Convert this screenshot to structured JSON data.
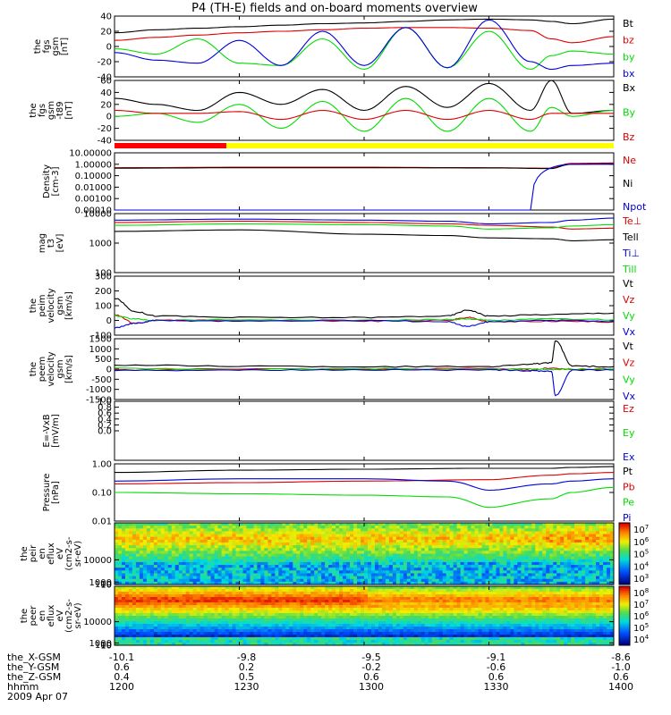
{
  "figure": {
    "title": "P4 (TH-E) fields and on-board moments overview",
    "date_label": "2009 Apr 07"
  },
  "time_axis": {
    "ticks": [
      "1200",
      "1230",
      "1300",
      "1330",
      "1400"
    ],
    "rows": [
      {
        "label": "the_X-GSM",
        "values": [
          "-10.1",
          "-9.8",
          "-9.5",
          "-9.1",
          "-8.6"
        ]
      },
      {
        "label": "the_Y-GSM",
        "values": [
          "0.6",
          "0.2",
          "-0.2",
          "-0.6",
          "-1.0"
        ]
      },
      {
        "label": "the_Z-GSM",
        "values": [
          "0.4",
          "0.5",
          "0.6",
          "0.6",
          "0.6"
        ]
      },
      {
        "label": "hhmm",
        "values": [
          "1200",
          "1230",
          "1300",
          "1330",
          "1400"
        ]
      }
    ]
  },
  "colors": {
    "black": "#000000",
    "red": "#dd0000",
    "green": "#00dd00",
    "blue": "#0000dd",
    "mode_bar_red": "#ff0000",
    "mode_bar_yellow": "#ffff00"
  },
  "chart_data": [
    {
      "type": "line",
      "id": "fgs_gsm",
      "ylabel": [
        "the",
        "fgs",
        "gsm",
        "[nT]"
      ],
      "ylim": [
        -40,
        40
      ],
      "yticks": [
        "40",
        "20",
        "0",
        "-20",
        "-40"
      ],
      "series": [
        {
          "name": "Bt",
          "color": "black",
          "x": [
            1200,
            1210,
            1220,
            1230,
            1240,
            1250,
            1300,
            1310,
            1320,
            1330,
            1340,
            1345,
            1350,
            1400
          ],
          "y": [
            18,
            22,
            24,
            26,
            28,
            30,
            31,
            33,
            35,
            36,
            35,
            33,
            30,
            36
          ]
        },
        {
          "name": "bz",
          "color": "red",
          "x": [
            1200,
            1210,
            1220,
            1230,
            1240,
            1250,
            1300,
            1310,
            1320,
            1330,
            1340,
            1345,
            1350,
            1400
          ],
          "y": [
            8,
            12,
            15,
            18,
            20,
            22,
            24,
            25,
            25,
            24,
            21,
            10,
            5,
            13
          ]
        },
        {
          "name": "by",
          "color": "green",
          "x": [
            1200,
            1210,
            1220,
            1230,
            1240,
            1250,
            1300,
            1310,
            1320,
            1330,
            1340,
            1345,
            1350,
            1400
          ],
          "y": [
            -3,
            -10,
            10,
            -22,
            -25,
            10,
            -30,
            25,
            -28,
            20,
            -30,
            -12,
            -6,
            -10
          ]
        },
        {
          "name": "bx",
          "color": "blue",
          "x": [
            1200,
            1210,
            1220,
            1230,
            1240,
            1250,
            1300,
            1310,
            1320,
            1330,
            1340,
            1345,
            1350,
            1400
          ],
          "y": [
            -8,
            -18,
            -22,
            8,
            -25,
            20,
            -25,
            25,
            -28,
            35,
            -20,
            -30,
            -25,
            -22
          ]
        }
      ]
    },
    {
      "type": "line",
      "id": "fgs_gse",
      "ylabel": [
        "the",
        "fgs",
        "gsm",
        "-t89",
        "[nT]"
      ],
      "ylim": [
        -40,
        60
      ],
      "yticks": [
        "60",
        "40",
        "20",
        "0",
        "-20",
        "-40"
      ],
      "series": [
        {
          "name": "Bx",
          "color": "black",
          "x": [
            1200,
            1210,
            1220,
            1230,
            1240,
            1250,
            1300,
            1310,
            1320,
            1330,
            1340,
            1345,
            1350,
            1400
          ],
          "y": [
            30,
            20,
            10,
            40,
            20,
            45,
            10,
            50,
            15,
            55,
            10,
            60,
            5,
            10
          ]
        },
        {
          "name": "By",
          "color": "green",
          "x": [
            1200,
            1210,
            1220,
            1230,
            1240,
            1250,
            1300,
            1310,
            1320,
            1330,
            1340,
            1345,
            1350,
            1400
          ],
          "y": [
            0,
            5,
            -10,
            20,
            -20,
            25,
            -25,
            30,
            -25,
            30,
            -25,
            15,
            0,
            10
          ]
        },
        {
          "name": "Bz",
          "color": "red",
          "x": [
            1200,
            1210,
            1220,
            1230,
            1240,
            1250,
            1300,
            1310,
            1320,
            1330,
            1340,
            1345,
            1350,
            1400
          ],
          "y": [
            10,
            5,
            5,
            8,
            -5,
            10,
            -5,
            10,
            -5,
            10,
            -5,
            5,
            5,
            5
          ]
        }
      ]
    },
    {
      "type": "line",
      "id": "density",
      "log": true,
      "ylabel": [
        "Density",
        "[cm-3]"
      ],
      "ylim": [
        0.0001,
        10
      ],
      "yticks": [
        "10.00000",
        "1.00000",
        "0.10000",
        "0.01000",
        "0.00100",
        "0.00010"
      ],
      "series": [
        {
          "name": "Ne",
          "color": "red",
          "x": [
            1200,
            1230,
            1300,
            1330,
            1345,
            1350,
            1400
          ],
          "y": [
            0.5,
            0.55,
            0.55,
            0.5,
            0.45,
            1.2,
            1.3
          ]
        },
        {
          "name": "Ni",
          "color": "black",
          "x": [
            1200,
            1230,
            1300,
            1330,
            1345,
            1350,
            1400
          ],
          "y": [
            0.45,
            0.5,
            0.5,
            0.48,
            0.42,
            1.0,
            1.1
          ]
        },
        {
          "name": "Npot",
          "color": "blue",
          "x": [
            1200,
            1230,
            1300,
            1330,
            1340,
            1350,
            1400
          ],
          "y": [
            0.0001,
            0.0001,
            0.0001,
            0.0001,
            0.0001,
            1.0,
            1.0
          ]
        }
      ]
    },
    {
      "type": "line",
      "id": "temperature",
      "log": true,
      "ylabel": [
        "mag",
        "t3",
        "[eV]"
      ],
      "ylim": [
        100,
        10000
      ],
      "yticks": [
        "10000",
        "1000",
        "100"
      ],
      "series": [
        {
          "name": "Te⊥",
          "color": "red",
          "x": [
            1200,
            1230,
            1300,
            1320,
            1330,
            1345,
            1350,
            1400
          ],
          "y": [
            5000,
            5500,
            5000,
            4500,
            4000,
            3500,
            3000,
            3200
          ]
        },
        {
          "name": "Tell",
          "color": "black",
          "x": [
            1200,
            1230,
            1300,
            1320,
            1330,
            1345,
            1350,
            1400
          ],
          "y": [
            2500,
            2800,
            2000,
            1800,
            1500,
            1400,
            1200,
            1300
          ]
        },
        {
          "name": "Ti⊥",
          "color": "blue",
          "x": [
            1200,
            1230,
            1300,
            1320,
            1330,
            1345,
            1350,
            1400
          ],
          "y": [
            6000,
            6500,
            6000,
            5500,
            4500,
            5000,
            6000,
            7000
          ]
        },
        {
          "name": "Till",
          "color": "green",
          "x": [
            1200,
            1230,
            1300,
            1320,
            1330,
            1345,
            1350,
            1400
          ],
          "y": [
            4000,
            4500,
            4200,
            3800,
            3000,
            3300,
            3800,
            4200
          ]
        }
      ]
    },
    {
      "type": "line",
      "id": "ion_velocity",
      "ylabel": [
        "the",
        "peim",
        "velocity",
        "gsm",
        "[km/s]"
      ],
      "ylim": [
        -100,
        300
      ],
      "yticks": [
        "300",
        "200",
        "100",
        "0",
        "-100"
      ],
      "series": [
        {
          "name": "Vt",
          "color": "black",
          "x": [
            1200,
            1205,
            1210,
            1230,
            1300,
            1320,
            1325,
            1330,
            1345,
            1400
          ],
          "y": [
            150,
            60,
            30,
            20,
            20,
            30,
            70,
            30,
            40,
            50
          ]
        },
        {
          "name": "Vz",
          "color": "red",
          "x": [
            1200,
            1205,
            1210,
            1230,
            1300,
            1320,
            1325,
            1330,
            1345,
            1400
          ],
          "y": [
            40,
            -20,
            0,
            0,
            -5,
            0,
            20,
            -10,
            -5,
            -10
          ]
        },
        {
          "name": "Vy",
          "color": "green",
          "x": [
            1200,
            1205,
            1210,
            1230,
            1300,
            1320,
            1325,
            1330,
            1345,
            1400
          ],
          "y": [
            30,
            10,
            0,
            5,
            0,
            5,
            10,
            0,
            10,
            5
          ]
        },
        {
          "name": "Vx",
          "color": "blue",
          "x": [
            1200,
            1205,
            1210,
            1230,
            1300,
            1320,
            1325,
            1330,
            1345,
            1400
          ],
          "y": [
            -50,
            -20,
            0,
            -5,
            0,
            -10,
            -40,
            -10,
            0,
            -5
          ]
        }
      ]
    },
    {
      "type": "line",
      "id": "electron_velocity",
      "ylabel": [
        "the",
        "peem",
        "velocity",
        "gsm",
        "[km/s]"
      ],
      "ylim": [
        -1500,
        1500
      ],
      "yticks": [
        "1500",
        "1000",
        "500",
        "0",
        "-500",
        "-1000",
        "-1500"
      ],
      "series": [
        {
          "name": "Vt",
          "color": "black",
          "x": [
            1200,
            1230,
            1300,
            1330,
            1340,
            1345,
            1346,
            1350,
            1400
          ],
          "y": [
            200,
            150,
            120,
            130,
            250,
            300,
            1400,
            150,
            120
          ]
        },
        {
          "name": "Vz",
          "color": "red",
          "x": [
            1200,
            1230,
            1300,
            1330,
            1340,
            1345,
            1350,
            1400
          ],
          "y": [
            -50,
            20,
            -20,
            30,
            -40,
            50,
            -20,
            10
          ]
        },
        {
          "name": "Vy",
          "color": "green",
          "x": [
            1200,
            1230,
            1300,
            1330,
            1340,
            1345,
            1350,
            1400
          ],
          "y": [
            30,
            -20,
            20,
            -10,
            20,
            -30,
            10,
            0
          ]
        },
        {
          "name": "Vx",
          "color": "blue",
          "x": [
            1200,
            1230,
            1300,
            1330,
            1340,
            1345,
            1346,
            1350,
            1400
          ],
          "y": [
            -60,
            -40,
            -30,
            -50,
            -80,
            -100,
            -1300,
            -50,
            -40
          ]
        }
      ]
    },
    {
      "type": "line",
      "id": "efield",
      "ylabel": [
        "E=-VxB",
        "[mV/m]"
      ],
      "ylim": [
        -1,
        1
      ],
      "yticks": [
        "1.0",
        "0.8",
        "0.6",
        "0.4",
        "0.2",
        "0.0"
      ],
      "series": [
        {
          "name": "Ez",
          "color": "red",
          "x": [],
          "y": []
        },
        {
          "name": "Ey",
          "color": "green",
          "x": [],
          "y": []
        },
        {
          "name": "Ex",
          "color": "blue",
          "x": [],
          "y": []
        }
      ]
    },
    {
      "type": "line",
      "id": "pressure",
      "log": true,
      "ylabel": [
        "Pressure",
        "[nPa]"
      ],
      "ylim": [
        0.01,
        1
      ],
      "yticks": [
        "1.00",
        "0.10",
        "0.01"
      ],
      "series": [
        {
          "name": "Pt",
          "color": "black",
          "x": [
            1200,
            1230,
            1300,
            1330,
            1345,
            1350,
            1400
          ],
          "y": [
            0.5,
            0.6,
            0.65,
            0.7,
            0.7,
            0.75,
            0.8
          ]
        },
        {
          "name": "Pb",
          "color": "red",
          "x": [
            1200,
            1230,
            1300,
            1330,
            1345,
            1350,
            1400
          ],
          "y": [
            0.2,
            0.22,
            0.25,
            0.28,
            0.4,
            0.45,
            0.5
          ]
        },
        {
          "name": "Pe",
          "color": "green",
          "x": [
            1200,
            1230,
            1300,
            1320,
            1330,
            1345,
            1350,
            1400
          ],
          "y": [
            0.1,
            0.09,
            0.08,
            0.07,
            0.03,
            0.06,
            0.1,
            0.15
          ]
        },
        {
          "name": "Pi",
          "color": "blue",
          "x": [
            1200,
            1230,
            1300,
            1320,
            1330,
            1345,
            1350,
            1400
          ],
          "y": [
            0.25,
            0.3,
            0.3,
            0.25,
            0.12,
            0.2,
            0.25,
            0.3
          ]
        }
      ]
    },
    {
      "type": "heatmap",
      "id": "ion_eflux",
      "ylabel": [
        "the",
        "peir",
        "en",
        "eflux",
        "eV",
        "(cm2-s-",
        "sr-eV)"
      ],
      "ylim": [
        5,
        25000
      ],
      "yticks": [
        "10000",
        "1000",
        "100",
        "10"
      ],
      "colorbar_ticks": [
        "10^7",
        "10^6",
        "10^5",
        "10^4",
        "10^3"
      ]
    },
    {
      "type": "heatmap",
      "id": "electron_eflux",
      "ylabel": [
        "the",
        "peer",
        "en",
        "eflux",
        "eV",
        "(cm2-s-",
        "sr-eV)"
      ],
      "ylim": [
        5,
        25000
      ],
      "yticks": [
        "10000",
        "1000",
        "100",
        "10"
      ],
      "colorbar_ticks": [
        "10^8",
        "10^7",
        "10^6",
        "10^5",
        "10^4"
      ]
    }
  ]
}
